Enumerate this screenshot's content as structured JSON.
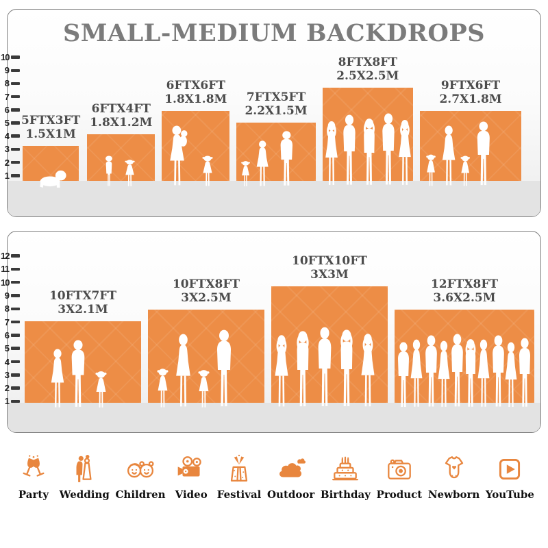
{
  "title": "SMALL-MEDIUM BACKDROPS",
  "colors": {
    "backdrop_orange": "#ED8D46",
    "icon_orange": "#E8863E",
    "bar_label_gray": "#4C4C4C",
    "title_gray": "#7B7B7B",
    "floor_gray": "#E3E3E3"
  },
  "chart_data": [
    {
      "type": "bar",
      "title": "SMALL-MEDIUM BACKDROPS",
      "group": "panel 1 - small backdrops with left ruler in feet",
      "categories": [
        "5FTX3FT",
        "6FTX4FT",
        "6FTX6FT",
        "7FTX5FT",
        "8FTX8FT",
        "9FTX6FT"
      ],
      "metric_labels": [
        "1.5X1M",
        "1.8X1.2M",
        "1.8X1.8M",
        "2.2X1.5M",
        "2.5X2.5M",
        "2.7X1.8M"
      ],
      "series": [
        {
          "name": "width_ft",
          "values": [
            5,
            6,
            6,
            7,
            8,
            9
          ]
        },
        {
          "name": "height_ft",
          "values": [
            3,
            4,
            6,
            5,
            8,
            6
          ]
        }
      ],
      "ylabel": "feet",
      "ylim": [
        1,
        10
      ],
      "grid": false,
      "legend": false
    },
    {
      "type": "bar",
      "title": "",
      "group": "panel 2 - medium backdrops with left ruler in feet",
      "categories": [
        "10FTX7FT",
        "10FTX8FT",
        "10FTX10FT",
        "12FTX8FT"
      ],
      "metric_labels": [
        "3X2.1M",
        "3X2.5M",
        "3X3M",
        "3.6X2.5M"
      ],
      "series": [
        {
          "name": "width_ft",
          "values": [
            10,
            10,
            10,
            12
          ]
        },
        {
          "name": "height_ft",
          "values": [
            7,
            8,
            10,
            8
          ]
        }
      ],
      "ylabel": "feet",
      "ylim": [
        1,
        12
      ],
      "grid": false,
      "legend": false
    }
  ],
  "icons": [
    {
      "label": "Party",
      "icon": "party-icon"
    },
    {
      "label": "Wedding",
      "icon": "wedding-icon"
    },
    {
      "label": "Children",
      "icon": "children-icon"
    },
    {
      "label": "Video",
      "icon": "video-icon"
    },
    {
      "label": "Festival",
      "icon": "festival-icon"
    },
    {
      "label": "Outdoor",
      "icon": "outdoor-icon"
    },
    {
      "label": "Birthday",
      "icon": "birthday-icon"
    },
    {
      "label": "Product",
      "icon": "product-icon"
    },
    {
      "label": "Newborn",
      "icon": "newborn-icon"
    },
    {
      "label": "YouTube",
      "icon": "youtube-icon"
    }
  ]
}
